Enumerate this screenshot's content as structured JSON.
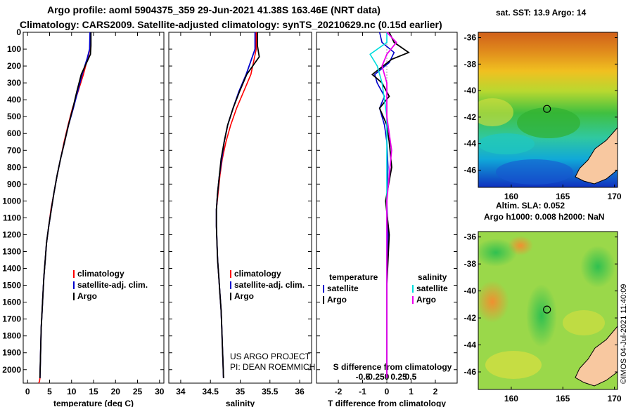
{
  "header": {
    "line1": "Argo profile: aoml 5904375_359 29-Jun-2021 41.38S 163.46E (NRT data)",
    "line2": "Climatology: CARS2009. Satellite-adjusted climatology: synTS_20210629.nc (0.15d earlier)"
  },
  "colors": {
    "climatology": "#ff0000",
    "satellite": "#0000cc",
    "argo": "#000000",
    "sat_salinity": "#00dddd",
    "argo_salinity": "#ee00ee",
    "land": "#f8c8a0"
  },
  "chart_data": [
    {
      "type": "line",
      "name": "temperature",
      "xlabel": "temperature (deg C)",
      "xlim": [
        -1,
        31
      ],
      "ylim": [
        2080,
        0
      ],
      "xticks": [
        0,
        5,
        10,
        15,
        20,
        25,
        30
      ],
      "yticks": [
        0,
        100,
        200,
        300,
        400,
        500,
        600,
        700,
        800,
        900,
        1000,
        1100,
        1200,
        1300,
        1400,
        1500,
        1600,
        1700,
        1800,
        1900,
        2000
      ],
      "series": [
        {
          "name": "climatology",
          "color": "#ff0000",
          "x": [
            14.3,
            14.2,
            13.7,
            12.7,
            11.5,
            10.2,
            9.2,
            8.3,
            7.5,
            6.7,
            6.0,
            5.3,
            4.8,
            4.3,
            4.0,
            3.7,
            3.5,
            3.3,
            3.1,
            3.0,
            2.9,
            2.8,
            2.7,
            2.6,
            2.5
          ],
          "depth": [
            0,
            100,
            150,
            250,
            350,
            450,
            550,
            650,
            750,
            850,
            950,
            1050,
            1150,
            1250,
            1350,
            1450,
            1550,
            1650,
            1750,
            1850,
            1950,
            2050,
            2070,
            2075,
            2080
          ]
        },
        {
          "name": "satellite-adj. clim.",
          "color": "#0000cc",
          "x": [
            14.2,
            14.1,
            13.6,
            12.4,
            11.4,
            10.4,
            9.3,
            8.4,
            7.5,
            6.7,
            6.0,
            5.4,
            4.8,
            4.3,
            4.0,
            3.7,
            3.5,
            3.3,
            3.1,
            3.0,
            2.9,
            2.8
          ],
          "depth": [
            0,
            100,
            150,
            250,
            350,
            450,
            550,
            650,
            750,
            850,
            950,
            1050,
            1150,
            1250,
            1350,
            1450,
            1550,
            1650,
            1750,
            1850,
            1950,
            2050
          ]
        },
        {
          "name": "Argo",
          "color": "#000000",
          "x": [
            14.4,
            14.4,
            14.3,
            12.2,
            11.2,
            10.3,
            9.3,
            8.4,
            7.5,
            6.7,
            6.0,
            5.4,
            4.8,
            4.3,
            4.0,
            3.7,
            3.5,
            3.3,
            3.1,
            3.0,
            2.9,
            2.8
          ],
          "depth": [
            0,
            80,
            130,
            250,
            350,
            450,
            550,
            650,
            750,
            850,
            950,
            1050,
            1150,
            1250,
            1350,
            1450,
            1550,
            1650,
            1750,
            1850,
            1950,
            2050
          ]
        }
      ],
      "legend": [
        {
          "label": "climatology",
          "color": "#ff0000"
        },
        {
          "label": "satellite-adj. clim.",
          "color": "#0000cc"
        },
        {
          "label": "Argo",
          "color": "#000000"
        }
      ]
    },
    {
      "type": "line",
      "name": "salinity",
      "xlabel": "salinity",
      "xlim": [
        33.8,
        36.2
      ],
      "ylim": [
        2080,
        0
      ],
      "xticks": [
        34,
        34.5,
        35,
        35.5,
        36
      ],
      "series": [
        {
          "name": "climatology",
          "color": "#ff0000",
          "x": [
            35.27,
            35.27,
            35.24,
            35.18,
            35.06,
            34.94,
            34.84,
            34.76,
            34.7,
            34.66,
            34.63,
            34.6,
            34.6,
            34.61,
            34.62,
            34.64,
            34.66,
            34.68,
            34.69,
            34.7,
            34.71,
            34.72
          ],
          "depth": [
            0,
            100,
            150,
            250,
            350,
            450,
            550,
            650,
            750,
            850,
            950,
            1050,
            1150,
            1250,
            1350,
            1450,
            1550,
            1650,
            1750,
            1850,
            1950,
            2050
          ]
        },
        {
          "name": "satellite-adj. clim.",
          "color": "#0000cc",
          "x": [
            35.25,
            35.25,
            35.2,
            35.1,
            34.98,
            34.88,
            34.79,
            34.73,
            34.69,
            34.65,
            34.62,
            34.6,
            34.6,
            34.61,
            34.62,
            34.64,
            34.66,
            34.68,
            34.69,
            34.7,
            34.71,
            34.72
          ],
          "depth": [
            0,
            100,
            150,
            250,
            350,
            450,
            550,
            650,
            750,
            850,
            950,
            1050,
            1150,
            1250,
            1350,
            1450,
            1550,
            1650,
            1750,
            1850,
            1950,
            2050
          ]
        },
        {
          "name": "Argo",
          "color": "#000000",
          "x": [
            35.29,
            35.29,
            35.32,
            35.11,
            34.99,
            34.88,
            34.79,
            34.73,
            34.68,
            34.65,
            34.62,
            34.6,
            34.6,
            34.61,
            34.62,
            34.64,
            34.66,
            34.68,
            34.69,
            34.7,
            34.71,
            34.72
          ],
          "depth": [
            0,
            80,
            145,
            250,
            350,
            450,
            550,
            650,
            750,
            850,
            950,
            1050,
            1150,
            1250,
            1350,
            1450,
            1550,
            1650,
            1750,
            1850,
            1950,
            2050
          ]
        }
      ],
      "legend": [
        {
          "label": "climatology",
          "color": "#ff0000"
        },
        {
          "label": "satellite-adj. clim.",
          "color": "#0000cc"
        },
        {
          "label": "Argo",
          "color": "#000000"
        }
      ],
      "annotations": [
        "US ARGO PROJECT",
        "PI: DEAN ROEMMICH"
      ]
    },
    {
      "type": "line",
      "name": "difference from climatology",
      "xlabel": "T difference from climatology",
      "xlabel_top": "S difference from climatology",
      "xlim": [
        -2.9,
        2.9
      ],
      "ylim": [
        2080,
        0
      ],
      "xticks": [
        -2,
        -1,
        0,
        1,
        2
      ],
      "xtick_labels": [
        "-2",
        "-1",
        "0",
        "1",
        "2"
      ],
      "s_xticks": [
        -0.5,
        -0.25,
        0,
        0.25,
        0.5
      ],
      "s_xtick_labels": [
        "-0.5",
        "-0.25",
        "0",
        "0.25",
        "0.5"
      ],
      "series": [
        {
          "name": "T satellite",
          "color": "#0000cc",
          "x": [
            -0.3,
            -0.2,
            0.3,
            0.1,
            -0.5,
            -0.4,
            -0.1,
            -0.3,
            -0.1,
            0.0,
            0.05,
            0.0,
            0.05,
            0.0,
            0.0,
            0.0
          ],
          "depth": [
            0,
            60,
            120,
            180,
            250,
            300,
            380,
            450,
            550,
            650,
            800,
            1000,
            1200,
            1500,
            1800,
            2050
          ]
        },
        {
          "name": "T Argo",
          "color": "#000000",
          "x": [
            0.1,
            0.3,
            0.9,
            0.2,
            -0.6,
            -0.2,
            0.1,
            -0.3,
            0.0,
            0.1,
            0.2,
            -0.05,
            0.1,
            0.0,
            0.0,
            0.0
          ],
          "depth": [
            0,
            60,
            120,
            160,
            250,
            300,
            380,
            450,
            550,
            650,
            800,
            1000,
            1200,
            1500,
            1800,
            2050
          ]
        },
        {
          "name": "S satellite",
          "color": "#00dddd",
          "x": [
            0.0,
            0.0,
            -0.35,
            -0.2,
            -0.1,
            0.0,
            0.0,
            0.0,
            0.0,
            0.0,
            0.0,
            0.0
          ],
          "depth": [
            0,
            60,
            130,
            200,
            300,
            500,
            700,
            1000,
            1300,
            1600,
            1900,
            2050
          ]
        },
        {
          "name": "S Argo",
          "color": "#ee00ee",
          "x": [
            0.0,
            0.2,
            0.0,
            -0.1,
            0.0,
            0.0,
            0.1,
            0.0,
            0.0,
            0.0,
            0.0,
            0.0
          ],
          "depth": [
            0,
            60,
            130,
            200,
            300,
            500,
            700,
            1000,
            1300,
            1600,
            1900,
            2050
          ]
        }
      ],
      "legend": [
        {
          "group": "temperature",
          "label": "satellite",
          "color": "#0000cc"
        },
        {
          "group": "temperature",
          "label": "Argo",
          "color": "#000000"
        },
        {
          "group": "salinity",
          "label": "satellite",
          "color": "#00dddd"
        },
        {
          "group": "salinity",
          "label": "Argo",
          "color": "#ee00ee"
        }
      ],
      "legend_headers": [
        "temperature",
        "salinity"
      ]
    }
  ],
  "maps": {
    "sst": {
      "title": "sat. SST: 13.9 Argo: 14",
      "yticks": [
        -36,
        -38,
        -40,
        -42,
        -44,
        -46
      ],
      "xticks": [
        160,
        165,
        170
      ],
      "lat_range": [
        -47.3,
        -35.6
      ],
      "lon_range": [
        156.8,
        170.3
      ],
      "marker": {
        "lon": 163.46,
        "lat": -41.38
      }
    },
    "sla": {
      "title1": "Altim. SLA: 0.052",
      "title2": "Argo h1000: 0.008 h2000: NaN",
      "yticks": [
        -36,
        -38,
        -40,
        -42,
        -44,
        -46
      ],
      "xticks": [
        160,
        165,
        170
      ],
      "lat_range": [
        -47.3,
        -35.6
      ],
      "lon_range": [
        156.8,
        170.3
      ],
      "marker": {
        "lon": 163.46,
        "lat": -41.38
      }
    }
  },
  "footer": {
    "imos": "©IMOS 04-Jul-2021 11:40:09"
  }
}
